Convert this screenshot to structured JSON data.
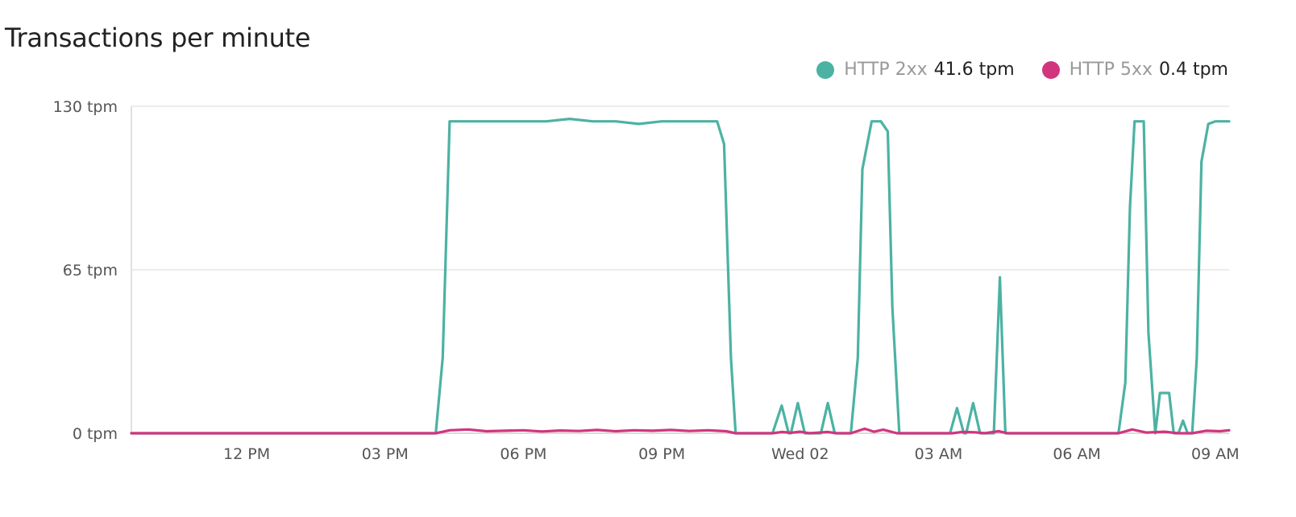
{
  "title": "Transactions per minute",
  "legend": [
    {
      "name": "HTTP 2xx",
      "value": "41.6 tpm",
      "color": "#4cb2a3"
    },
    {
      "name": "HTTP 5xx",
      "value": "0.4 tpm",
      "color": "#d1357e"
    }
  ],
  "chart_data": {
    "type": "line",
    "title": "Transactions per minute",
    "grid": true,
    "legend_position": "top-right",
    "xlim": [
      9.5,
      33.3
    ],
    "ylim": [
      0,
      130
    ],
    "y_ticks": [
      {
        "value": 0,
        "label": "0 tpm"
      },
      {
        "value": 65,
        "label": "65 tpm"
      },
      {
        "value": 130,
        "label": "130 tpm"
      }
    ],
    "x_ticks": [
      {
        "value": 12,
        "label": "12 PM"
      },
      {
        "value": 15,
        "label": "03 PM"
      },
      {
        "value": 18,
        "label": "06 PM"
      },
      {
        "value": 21,
        "label": "09 PM"
      },
      {
        "value": 24,
        "label": "Wed 02"
      },
      {
        "value": 27,
        "label": "03 AM"
      },
      {
        "value": 30,
        "label": "06 AM"
      },
      {
        "value": 33,
        "label": "09 AM"
      }
    ],
    "series": [
      {
        "name": "HTTP 2xx",
        "color": "#4cb2a3",
        "points": [
          [
            9.5,
            0
          ],
          [
            16.1,
            0
          ],
          [
            16.25,
            30
          ],
          [
            16.4,
            124
          ],
          [
            16.8,
            124
          ],
          [
            17.5,
            124
          ],
          [
            18,
            124
          ],
          [
            18.5,
            124
          ],
          [
            19,
            125
          ],
          [
            19.5,
            124
          ],
          [
            20,
            124
          ],
          [
            20.5,
            123
          ],
          [
            21,
            124
          ],
          [
            21.5,
            124
          ],
          [
            22,
            124
          ],
          [
            22.2,
            124
          ],
          [
            22.35,
            115
          ],
          [
            22.5,
            30
          ],
          [
            22.6,
            0
          ],
          [
            23.4,
            0
          ],
          [
            23.6,
            11
          ],
          [
            23.75,
            0
          ],
          [
            23.8,
            0
          ],
          [
            23.95,
            12
          ],
          [
            24.1,
            0
          ],
          [
            24.45,
            0
          ],
          [
            24.6,
            12
          ],
          [
            24.75,
            0
          ],
          [
            25.1,
            0
          ],
          [
            25.25,
            30
          ],
          [
            25.35,
            105
          ],
          [
            25.55,
            124
          ],
          [
            25.75,
            124
          ],
          [
            25.9,
            120
          ],
          [
            26.0,
            50
          ],
          [
            26.15,
            0
          ],
          [
            27.0,
            0
          ],
          [
            27.25,
            0
          ],
          [
            27.4,
            10
          ],
          [
            27.55,
            0
          ],
          [
            27.6,
            0
          ],
          [
            27.75,
            12
          ],
          [
            27.9,
            0
          ],
          [
            28.2,
            0
          ],
          [
            28.33,
            62
          ],
          [
            28.45,
            0
          ],
          [
            29.0,
            0
          ],
          [
            30.9,
            0
          ],
          [
            31.05,
            20
          ],
          [
            31.15,
            90
          ],
          [
            31.25,
            124
          ],
          [
            31.45,
            124
          ],
          [
            31.55,
            40
          ],
          [
            31.7,
            0
          ],
          [
            31.8,
            16
          ],
          [
            32.0,
            16
          ],
          [
            32.1,
            0
          ],
          [
            32.2,
            0
          ],
          [
            32.3,
            5
          ],
          [
            32.4,
            0
          ],
          [
            32.5,
            0
          ],
          [
            32.6,
            30
          ],
          [
            32.7,
            108
          ],
          [
            32.85,
            123
          ],
          [
            33.0,
            124
          ],
          [
            33.3,
            124
          ]
        ]
      },
      {
        "name": "HTTP 5xx",
        "color": "#d1357e",
        "points": [
          [
            9.5,
            0
          ],
          [
            16.1,
            0
          ],
          [
            16.4,
            1.2
          ],
          [
            16.8,
            1.5
          ],
          [
            17.2,
            0.8
          ],
          [
            17.6,
            1
          ],
          [
            18,
            1.2
          ],
          [
            18.4,
            0.7
          ],
          [
            18.8,
            1.1
          ],
          [
            19.2,
            0.9
          ],
          [
            19.6,
            1.3
          ],
          [
            20,
            0.8
          ],
          [
            20.4,
            1.2
          ],
          [
            20.8,
            1
          ],
          [
            21.2,
            1.3
          ],
          [
            21.6,
            0.9
          ],
          [
            22,
            1.2
          ],
          [
            22.4,
            0.8
          ],
          [
            22.6,
            0
          ],
          [
            23.4,
            0
          ],
          [
            23.6,
            0.5
          ],
          [
            23.8,
            0.2
          ],
          [
            24.0,
            0.6
          ],
          [
            24.2,
            0
          ],
          [
            24.6,
            0.5
          ],
          [
            24.8,
            0
          ],
          [
            25.1,
            0
          ],
          [
            25.4,
            1.8
          ],
          [
            25.6,
            0.6
          ],
          [
            25.8,
            1.4
          ],
          [
            26.1,
            0
          ],
          [
            27.3,
            0
          ],
          [
            27.5,
            0.5
          ],
          [
            27.8,
            0.4
          ],
          [
            28.0,
            0
          ],
          [
            28.3,
            0.8
          ],
          [
            28.5,
            0
          ],
          [
            30.9,
            0
          ],
          [
            31.2,
            1.5
          ],
          [
            31.5,
            0.3
          ],
          [
            31.9,
            0.6
          ],
          [
            32.2,
            0
          ],
          [
            32.5,
            0
          ],
          [
            32.8,
            1
          ],
          [
            33.1,
            0.8
          ],
          [
            33.3,
            1.2
          ]
        ]
      }
    ]
  }
}
